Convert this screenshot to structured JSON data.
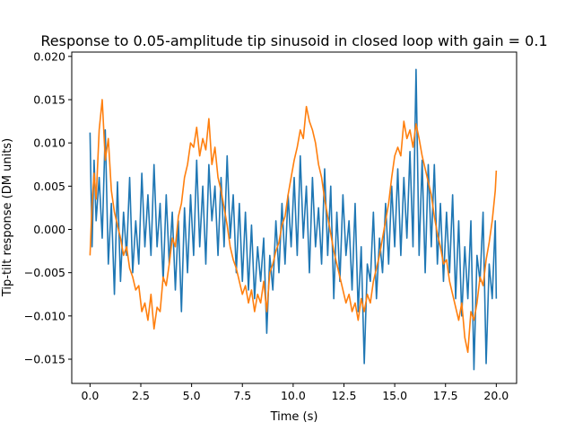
{
  "chart_data": {
    "type": "line",
    "title": "Response to 0.05-amplitude tip sinusoid in closed loop with gain = 0.1",
    "xlabel": "Time (s)",
    "ylabel": "Tip-tilt response (DM units)",
    "xlim": [
      -0.9,
      21.0
    ],
    "ylim": [
      -0.0178,
      0.0205
    ],
    "xticks": [
      0.0,
      2.5,
      5.0,
      7.5,
      10.0,
      12.5,
      15.0,
      17.5,
      20.0
    ],
    "xtick_labels": [
      "0.0",
      "2.5",
      "5.0",
      "7.5",
      "10.0",
      "12.5",
      "15.0",
      "17.5",
      "20.0"
    ],
    "yticks": [
      -0.015,
      -0.01,
      -0.005,
      0.0,
      0.005,
      0.01,
      0.015,
      0.02
    ],
    "ytick_labels": [
      "−0.015",
      "−0.010",
      "−0.005",
      "0.000",
      "0.005",
      "0.010",
      "0.015",
      "0.020"
    ],
    "grid": false,
    "legend": "none",
    "series": [
      {
        "color": "#1f77b4",
        "x": [
          0.0,
          0.1,
          0.2,
          0.3,
          0.45,
          0.6,
          0.75,
          0.9,
          1.05,
          1.2,
          1.35,
          1.5,
          1.65,
          1.8,
          1.95,
          2.1,
          2.25,
          2.4,
          2.55,
          2.7,
          2.85,
          3.0,
          3.15,
          3.3,
          3.45,
          3.6,
          3.75,
          3.9,
          4.05,
          4.2,
          4.35,
          4.5,
          4.65,
          4.8,
          4.95,
          5.1,
          5.25,
          5.4,
          5.55,
          5.7,
          5.85,
          6.0,
          6.15,
          6.3,
          6.45,
          6.6,
          6.75,
          6.9,
          7.05,
          7.2,
          7.35,
          7.5,
          7.65,
          7.8,
          7.95,
          8.1,
          8.25,
          8.4,
          8.55,
          8.7,
          8.85,
          9.0,
          9.15,
          9.3,
          9.45,
          9.6,
          9.75,
          9.9,
          10.05,
          10.2,
          10.35,
          10.5,
          10.65,
          10.8,
          10.95,
          11.1,
          11.25,
          11.4,
          11.55,
          11.7,
          11.85,
          12.0,
          12.15,
          12.3,
          12.45,
          12.6,
          12.75,
          12.9,
          13.05,
          13.2,
          13.35,
          13.5,
          13.65,
          13.8,
          13.95,
          14.1,
          14.25,
          14.4,
          14.55,
          14.7,
          14.85,
          15.0,
          15.15,
          15.3,
          15.45,
          15.6,
          15.75,
          15.9,
          16.05,
          16.2,
          16.35,
          16.5,
          16.65,
          16.8,
          16.95,
          17.1,
          17.25,
          17.4,
          17.55,
          17.7,
          17.85,
          18.0,
          18.15,
          18.3,
          18.45,
          18.6,
          18.75,
          18.9,
          19.05,
          19.2,
          19.35,
          19.5,
          19.65,
          19.8,
          19.95,
          20.0
        ],
        "y": [
          0.0112,
          -0.002,
          0.008,
          0.001,
          0.006,
          -0.001,
          0.0115,
          -0.004,
          0.003,
          -0.0075,
          0.0055,
          -0.006,
          0.002,
          -0.003,
          0.006,
          -0.005,
          0.001,
          -0.004,
          0.0065,
          -0.002,
          0.004,
          -0.003,
          0.0075,
          -0.002,
          0.003,
          -0.006,
          0.004,
          -0.004,
          0.002,
          -0.007,
          0.001,
          -0.0095,
          0.0025,
          -0.005,
          0.004,
          -0.003,
          0.008,
          -0.002,
          0.005,
          -0.004,
          0.0075,
          0.001,
          0.005,
          -0.003,
          0.006,
          -0.002,
          0.0085,
          -0.001,
          0.004,
          -0.005,
          0.003,
          -0.006,
          0.002,
          -0.007,
          0.0005,
          -0.008,
          -0.002,
          -0.006,
          -0.001,
          -0.012,
          -0.003,
          -0.007,
          0.001,
          -0.005,
          0.003,
          -0.004,
          0.004,
          -0.002,
          0.006,
          -0.003,
          0.0085,
          -0.001,
          0.005,
          -0.005,
          0.006,
          -0.002,
          0.0025,
          -0.004,
          0.007,
          -0.003,
          0.005,
          -0.008,
          0.002,
          -0.006,
          0.004,
          -0.003,
          0.001,
          -0.007,
          0.003,
          -0.0095,
          -0.002,
          -0.0155,
          -0.004,
          -0.006,
          0.002,
          -0.008,
          -0.001,
          -0.005,
          0.003,
          -0.004,
          0.005,
          -0.002,
          0.007,
          -0.003,
          0.006,
          -0.001,
          0.009,
          -0.002,
          0.0185,
          -0.003,
          0.008,
          -0.005,
          0.0075,
          -0.002,
          0.0075,
          -0.004,
          0.003,
          -0.006,
          0.002,
          -0.005,
          0.004,
          -0.008,
          0.001,
          -0.01,
          -0.002,
          -0.008,
          0.001,
          -0.0162,
          -0.003,
          -0.006,
          0.002,
          -0.0155,
          -0.004,
          -0.008,
          0.001,
          -0.008
        ]
      },
      {
        "color": "#ff7f0e",
        "x": [
          0.0,
          0.1,
          0.2,
          0.3,
          0.45,
          0.6,
          0.75,
          0.9,
          1.05,
          1.2,
          1.35,
          1.5,
          1.65,
          1.8,
          1.95,
          2.1,
          2.25,
          2.4,
          2.55,
          2.7,
          2.85,
          3.0,
          3.15,
          3.3,
          3.45,
          3.6,
          3.75,
          3.9,
          4.05,
          4.2,
          4.35,
          4.5,
          4.65,
          4.8,
          4.95,
          5.1,
          5.25,
          5.4,
          5.55,
          5.7,
          5.85,
          6.0,
          6.15,
          6.3,
          6.45,
          6.6,
          6.75,
          6.9,
          7.05,
          7.2,
          7.35,
          7.5,
          7.65,
          7.8,
          7.95,
          8.1,
          8.25,
          8.4,
          8.55,
          8.7,
          8.85,
          9.0,
          9.15,
          9.3,
          9.45,
          9.6,
          9.75,
          9.9,
          10.05,
          10.2,
          10.35,
          10.5,
          10.65,
          10.8,
          10.95,
          11.1,
          11.25,
          11.4,
          11.55,
          11.7,
          11.85,
          12.0,
          12.15,
          12.3,
          12.45,
          12.6,
          12.75,
          12.9,
          13.05,
          13.2,
          13.35,
          13.5,
          13.65,
          13.8,
          13.95,
          14.1,
          14.25,
          14.4,
          14.55,
          14.7,
          14.85,
          15.0,
          15.15,
          15.3,
          15.45,
          15.6,
          15.75,
          15.9,
          16.05,
          16.2,
          16.35,
          16.5,
          16.65,
          16.8,
          16.95,
          17.1,
          17.25,
          17.4,
          17.55,
          17.7,
          17.85,
          18.0,
          18.15,
          18.3,
          18.45,
          18.6,
          18.75,
          18.9,
          19.05,
          19.2,
          19.35,
          19.5,
          19.65,
          19.8,
          19.95,
          20.0
        ],
        "y": [
          -0.003,
          0.003,
          0.0065,
          0.0035,
          0.0115,
          0.015,
          0.008,
          0.0105,
          0.0045,
          0.002,
          0.0005,
          -0.001,
          -0.003,
          -0.002,
          -0.0045,
          -0.0055,
          -0.007,
          -0.0065,
          -0.0095,
          -0.0085,
          -0.0105,
          -0.0075,
          -0.0115,
          -0.009,
          -0.0095,
          -0.0055,
          -0.0065,
          -0.004,
          -0.001,
          -0.002,
          0.0015,
          0.003,
          0.006,
          0.0075,
          0.01,
          0.0095,
          0.0118,
          0.0085,
          0.0105,
          0.0092,
          0.0128,
          0.0075,
          0.0095,
          0.006,
          0.0045,
          0.0025,
          0.0005,
          -0.002,
          -0.0035,
          -0.0045,
          -0.006,
          -0.0075,
          -0.0065,
          -0.0085,
          -0.007,
          -0.0095,
          -0.0075,
          -0.0085,
          -0.006,
          -0.0095,
          -0.005,
          -0.004,
          -0.0025,
          -0.0015,
          0.0005,
          0.0015,
          0.004,
          0.006,
          0.008,
          0.0095,
          0.0115,
          0.0105,
          0.0142,
          0.0125,
          0.0115,
          0.01,
          0.0075,
          0.006,
          0.0035,
          0.0015,
          -0.0005,
          -0.0025,
          -0.004,
          -0.0055,
          -0.007,
          -0.0085,
          -0.0075,
          -0.0095,
          -0.0085,
          -0.0105,
          -0.008,
          -0.0095,
          -0.0075,
          -0.0085,
          -0.006,
          -0.0045,
          -0.003,
          -0.001,
          0.001,
          0.003,
          0.006,
          0.0085,
          0.0095,
          0.0085,
          0.0125,
          0.0105,
          0.0115,
          0.0095,
          0.0122,
          0.0105,
          0.0085,
          0.007,
          0.0055,
          0.004,
          0.0015,
          -0.0005,
          -0.002,
          -0.004,
          -0.0035,
          -0.006,
          -0.0075,
          -0.009,
          -0.0105,
          -0.0085,
          -0.0125,
          -0.0142,
          -0.0095,
          -0.0105,
          -0.0085,
          -0.0055,
          -0.0065,
          -0.0035,
          -0.0015,
          0.001,
          0.0045,
          0.0068
        ]
      }
    ]
  }
}
